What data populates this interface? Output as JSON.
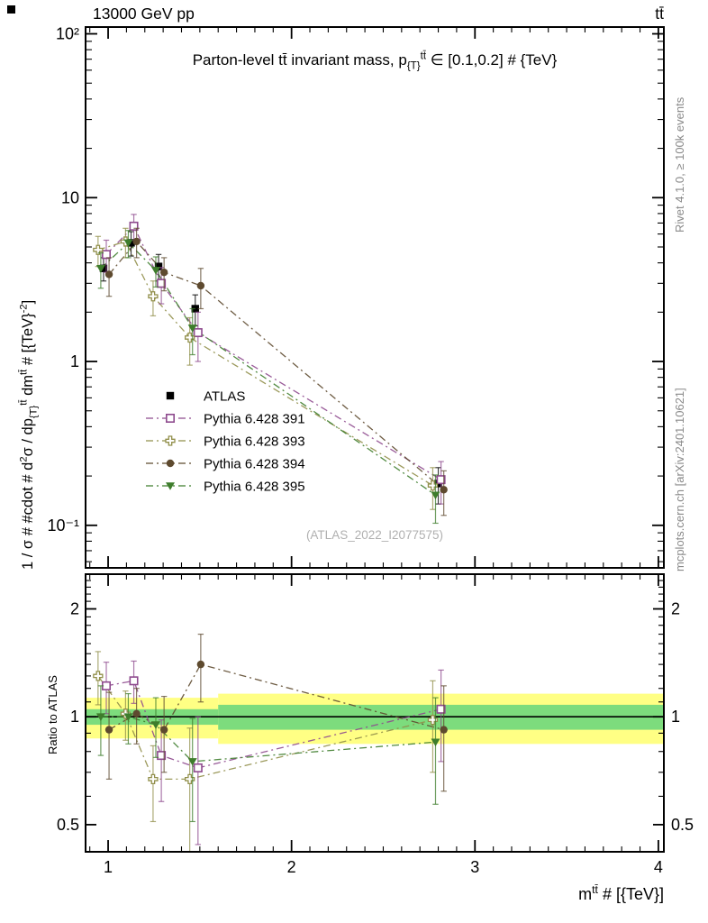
{
  "page": {
    "header_left": "13000 GeV pp",
    "header_right": "tt̄",
    "watermark": "(ATLAS_2022_I2077575)",
    "right_margin_top": "Rivet 4.1.0, ≥ 100k events",
    "right_margin_bottom": "mcplots.cern.ch [arXiv:2401.10621]"
  },
  "labels": {
    "title_rich": [
      [
        "Parton-level tt̄ invariant mass,  p",
        ""
      ],
      [
        "{T}",
        "sub"
      ],
      [
        "tt̄",
        "sup"
      ],
      [
        " ∈ [0.1,0.2] # {TeV}",
        ""
      ]
    ],
    "ylabel_rich": [
      [
        "1 / σ # #cdot # d",
        ""
      ],
      [
        "2",
        "sup"
      ],
      [
        "σ / dp",
        ""
      ],
      [
        "{T}",
        "sub"
      ],
      [
        "tt̄",
        "sup"
      ],
      [
        " dm",
        ""
      ],
      [
        "tt̄",
        "sup"
      ],
      [
        " # [{TeV}",
        ""
      ],
      [
        "-2",
        "sup"
      ],
      [
        "]",
        ""
      ]
    ],
    "xlabel_rich": [
      [
        "m",
        ""
      ],
      [
        "tt̄",
        "sup"
      ],
      [
        " # [{TeV}]",
        ""
      ]
    ],
    "ratio_ylabel": "Ratio to ATLAS"
  },
  "chart_data": {
    "type": "line",
    "title": "Parton-level tt invariant mass, pT^tt in [0.1,0.2] TeV",
    "xlabel": "m^tt [TeV]",
    "ylabel": "1/sigma d2sigma/dpT dm [TeV^-2]",
    "ratio_ylabel": "Ratio to ATLAS",
    "x": [
      0.975,
      1.125,
      1.275,
      1.475,
      2.8
    ],
    "xlim": [
      0.877,
      4.03
    ],
    "xticks": [
      1,
      2,
      3,
      4
    ],
    "top_panel": {
      "ylog": true,
      "ylim": [
        0.055,
        110
      ],
      "yticks": [
        {
          "v": 100,
          "label": "10²"
        },
        {
          "v": 10,
          "label": "10"
        },
        {
          "v": 1,
          "label": "1"
        },
        {
          "v": 0.1,
          "label": "10⁻¹"
        }
      ]
    },
    "ratio_panel": {
      "ylog": true,
      "ylim": [
        0.42,
        2.5
      ],
      "yticks": [
        {
          "v": 2,
          "label": "2"
        },
        {
          "v": 1,
          "label": "1"
        },
        {
          "v": 0.5,
          "label": "0.5"
        }
      ],
      "reference_line": 1,
      "bands": {
        "outer_color": "#ffff84",
        "inner_color": "#7ddc7d",
        "segments": [
          {
            "x0": 0.877,
            "x1": 1.6,
            "outer": [
              0.87,
              1.13
            ],
            "inner": [
              0.95,
              1.05
            ]
          },
          {
            "x0": 1.6,
            "x1": 4.03,
            "outer": [
              0.84,
              1.16
            ],
            "inner": [
              0.92,
              1.08
            ]
          }
        ]
      }
    },
    "series": [
      {
        "name": "ATLAS",
        "role": "reference",
        "color": "#000000",
        "marker": "square-filled",
        "dx": 0,
        "y": [
          3.7,
          5.3,
          3.8,
          2.1,
          0.18
        ],
        "yerr": [
          0.6,
          0.9,
          0.7,
          0.45,
          0.045
        ]
      },
      {
        "name": "Pythia 6.428 391",
        "color": "#8e4a8e",
        "marker": "square-open",
        "line": "dashdot",
        "dx": 0.015,
        "y": [
          4.5,
          6.7,
          3.0,
          1.5,
          0.19
        ],
        "yerr": [
          1.0,
          1.2,
          0.75,
          0.5,
          0.055
        ],
        "ratio": [
          1.22,
          1.26,
          0.78,
          0.72,
          1.05
        ],
        "ratio_err": [
          0.2,
          0.17,
          0.2,
          0.28,
          0.3
        ]
      },
      {
        "name": "Pythia 6.428 393",
        "color": "#918f4a",
        "marker": "cross-open",
        "line": "dashdot",
        "dx": -0.03,
        "y": [
          4.8,
          5.4,
          2.5,
          1.4,
          0.175
        ],
        "yerr": [
          1.0,
          1.1,
          0.6,
          0.45,
          0.05
        ],
        "ratio": [
          1.3,
          1.02,
          0.67,
          0.67,
          0.98
        ],
        "ratio_err": [
          0.22,
          0.16,
          0.16,
          0.26,
          0.28
        ]
      },
      {
        "name": "Pythia 6.428 394",
        "color": "#5e4a2f",
        "marker": "circle-filled",
        "line": "dashdot",
        "dx": 0.03,
        "y": [
          3.4,
          5.4,
          3.5,
          2.9,
          0.165
        ],
        "yerr": [
          0.9,
          1.1,
          0.8,
          0.8,
          0.05
        ],
        "ratio": [
          0.92,
          1.02,
          0.92,
          1.4,
          0.92
        ],
        "ratio_err": [
          0.25,
          0.18,
          0.22,
          0.3,
          0.3
        ]
      },
      {
        "name": "Pythia 6.428 395",
        "color": "#3e7d2c",
        "marker": "triangle-down-filled",
        "line": "dashdot",
        "dx": -0.015,
        "y": [
          3.7,
          5.3,
          3.6,
          1.6,
          0.153
        ],
        "yerr": [
          0.9,
          1.0,
          0.75,
          0.5,
          0.05
        ],
        "ratio": [
          1.0,
          1.0,
          0.95,
          0.75,
          0.85
        ],
        "ratio_err": [
          0.22,
          0.16,
          0.18,
          0.24,
          0.28
        ]
      }
    ]
  }
}
